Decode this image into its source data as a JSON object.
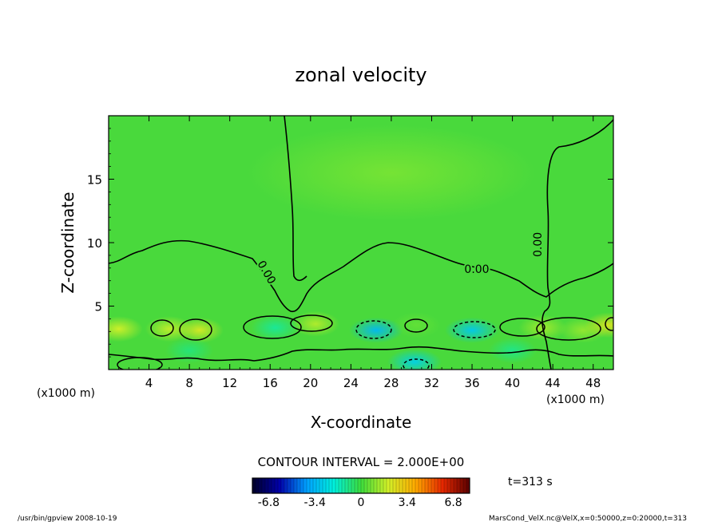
{
  "chart_data": {
    "type": "heatmap",
    "title": "zonal velocity",
    "xlabel": "X-coordinate",
    "ylabel": "Z-coordinate",
    "x_unit_left": "(x1000 m)",
    "x_unit_right": "(x1000 m)",
    "xlim": [
      0,
      50
    ],
    "ylim": [
      0,
      20
    ],
    "x_ticks": [
      4,
      8,
      12,
      16,
      20,
      24,
      28,
      32,
      36,
      40,
      44,
      48
    ],
    "y_ticks": [
      5,
      10,
      15
    ],
    "contour_interval_text": "CONTOUR INTERVAL = 2.000E+00",
    "contour_labels": [
      "0.00",
      "0.00",
      "0.00"
    ],
    "time_text": "t=313 s",
    "colorbar": {
      "range": [
        -8,
        8
      ],
      "tick_values": [
        -6.8,
        -3.4,
        0,
        3.4,
        6.8
      ],
      "tick_labels": [
        "-6.8",
        "-3.4",
        "0",
        "3.4",
        "6.8"
      ]
    },
    "anomalies": [
      {
        "x": 1.0,
        "z": 3.2,
        "value": 2.0
      },
      {
        "x": 6.0,
        "z": 3.2,
        "value": 1.8
      },
      {
        "x": 9.0,
        "z": 3.1,
        "value": 2.2
      },
      {
        "x": 16.5,
        "z": 3.3,
        "value": -1.2
      },
      {
        "x": 20.5,
        "z": 3.6,
        "value": 1.6
      },
      {
        "x": 26.5,
        "z": 3.1,
        "value": -3.4
      },
      {
        "x": 30.5,
        "z": 3.5,
        "value": 0.5
      },
      {
        "x": 30.3,
        "z": 0.6,
        "value": -2.8
      },
      {
        "x": 36.0,
        "z": 3.1,
        "value": -3.0
      },
      {
        "x": 43.0,
        "z": 3.3,
        "value": 1.4
      },
      {
        "x": 47.0,
        "z": 3.1,
        "value": 1.2
      },
      {
        "x": 49.5,
        "z": 3.5,
        "value": 2.4
      },
      {
        "x": 28.0,
        "z": 15.5,
        "value": 0.8
      },
      {
        "x": 8.0,
        "z": 1.5,
        "value": -0.8
      },
      {
        "x": 40.0,
        "z": 1.5,
        "value": -1.0
      }
    ]
  },
  "footer": {
    "left": "/usr/bin/gpview   2008-10-19",
    "right": "MarsCond_VelX.nc@VelX,x=0:50000,z=0:20000,t=313"
  }
}
